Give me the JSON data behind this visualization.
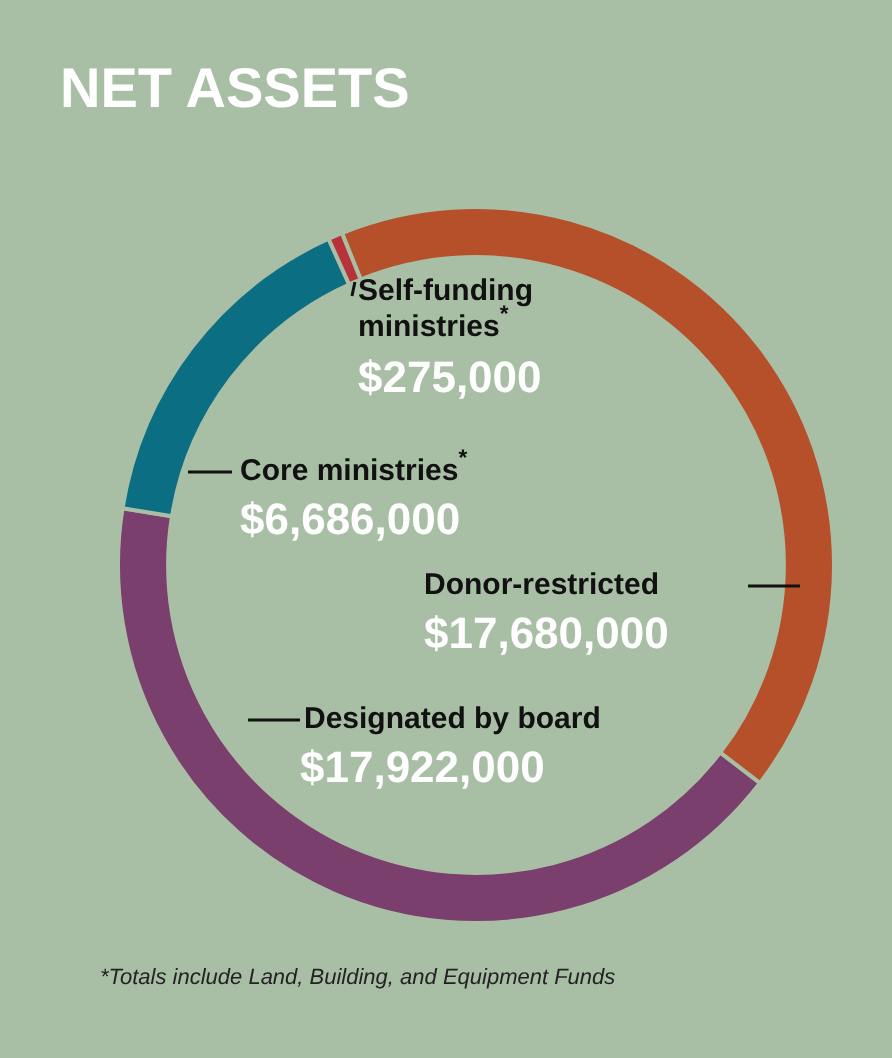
{
  "chart_data": {
    "type": "donut",
    "title": "NET ASSETS",
    "categories": [
      "Donor-restricted",
      "Designated by board",
      "Core ministries$^{*}$",
      "Self-funding ministries$^{*}$"
    ],
    "values": [
      17680000,
      17922000,
      6686000,
      275000
    ],
    "colors": [
      "#b5502a",
      "#7b3f6e",
      "#0b6e82",
      "#b8323a"
    ],
    "value_labels": [
      "$17,680,000",
      "$17,922,000",
      "$6,686,000",
      "$275,000"
    ],
    "legend": false,
    "annotations": [
      "*Totals include Land, Building, and Equipment Funds"
    ]
  }
}
